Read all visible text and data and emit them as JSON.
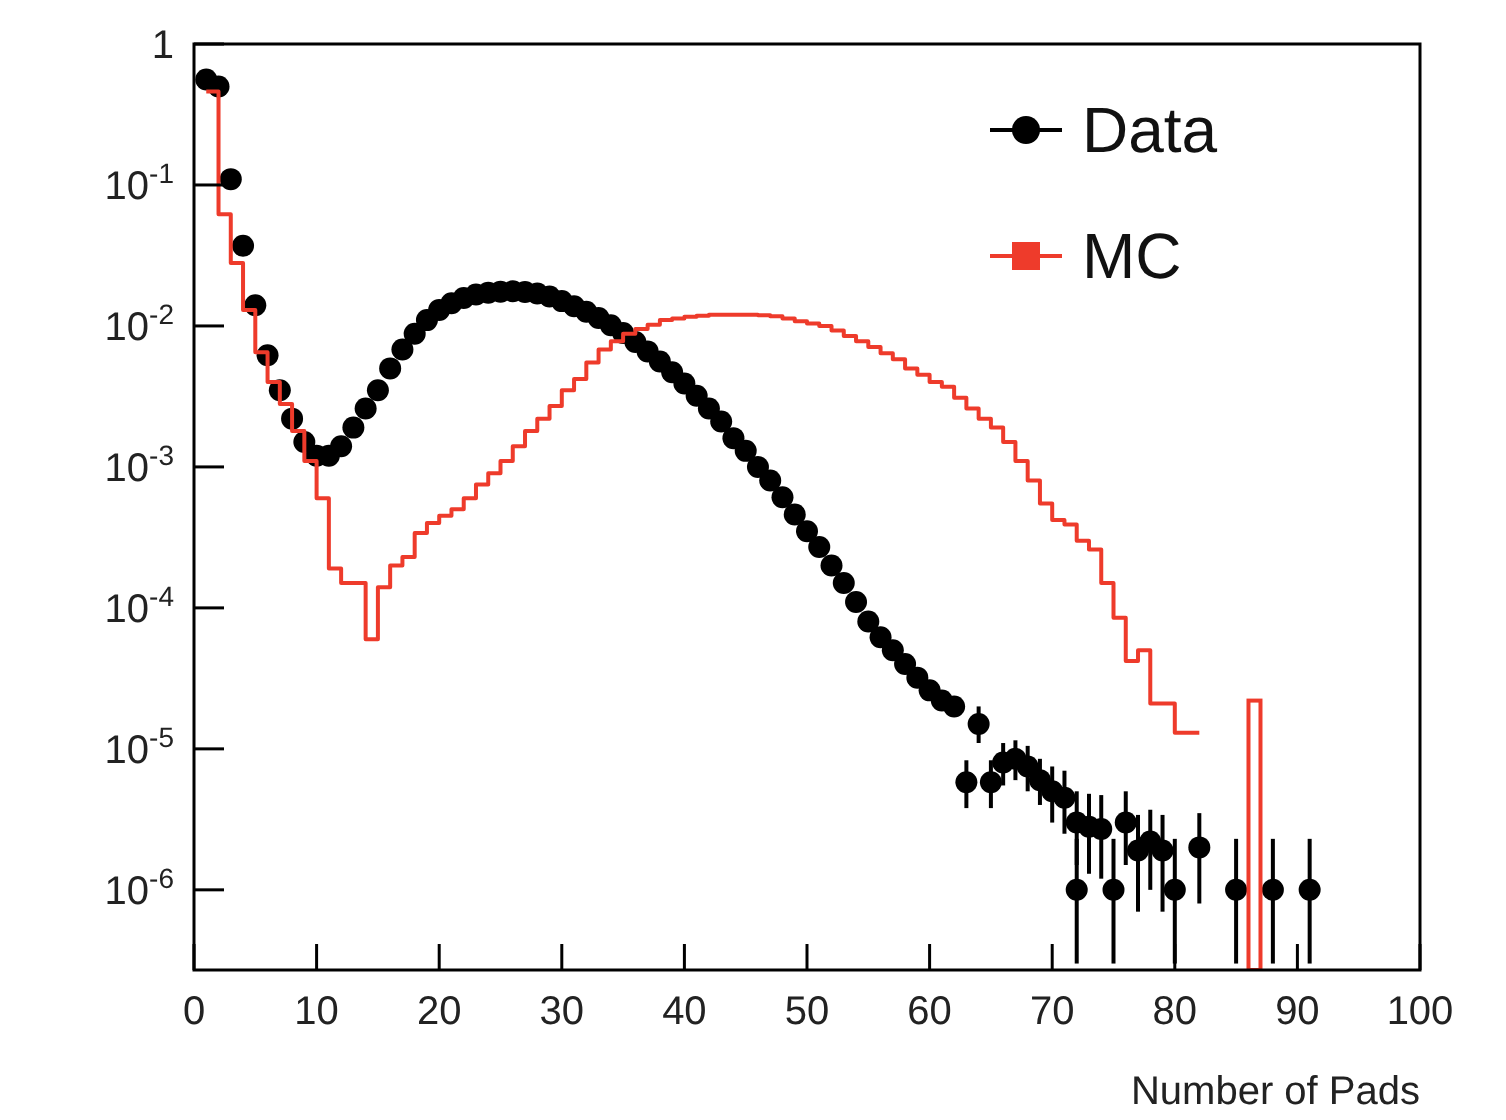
{
  "chart_data": {
    "type": "scatter",
    "xlabel": "Number of Pads",
    "log": "y",
    "legend": "top right",
    "grid": false,
    "xlim": [
      0,
      100
    ],
    "xticks": [
      0,
      10,
      20,
      30,
      40,
      50,
      60,
      70,
      80,
      90,
      100
    ],
    "ylim": [
      2.7e-07,
      1
    ],
    "yticks": [
      {
        "value": 1e-06,
        "label": "10$^{-6}$"
      },
      {
        "value": 1e-05,
        "label": "10$^{-5}$"
      },
      {
        "value": 0.0001,
        "label": "10$^{-4}$"
      },
      {
        "value": 0.001,
        "label": "10$^{-3}$"
      },
      {
        "value": 0.01,
        "label": "10$^{-2}$"
      },
      {
        "value": 0.1,
        "label": "10$^{-1}$"
      },
      1
    ],
    "series": [
      {
        "name": "Data",
        "marker": "circle",
        "color": "#000000",
        "x": [
          1,
          2,
          3,
          4,
          5,
          6,
          7,
          8,
          9,
          10,
          11,
          12,
          13,
          14,
          15,
          16,
          17,
          18,
          19,
          20,
          21,
          22,
          23,
          24,
          25,
          26,
          27,
          28,
          29,
          30,
          31,
          32,
          33,
          34,
          35,
          36,
          37,
          38,
          39,
          40,
          41,
          42,
          43,
          44,
          45,
          46,
          47,
          48,
          49,
          50,
          51,
          52,
          53,
          54,
          55,
          56,
          57,
          58,
          59,
          60,
          61,
          62,
          63,
          64,
          65,
          66,
          67,
          68,
          69,
          70,
          71,
          72,
          72,
          73,
          74,
          75,
          76,
          77,
          78,
          79,
          80,
          82,
          85,
          88,
          91
        ],
        "values": [
          0.56,
          0.5,
          0.11,
          0.037,
          0.014,
          0.0062,
          0.0035,
          0.0022,
          0.0015,
          0.0012,
          0.0012,
          0.0014,
          0.0019,
          0.0026,
          0.0035,
          0.005,
          0.0068,
          0.0088,
          0.011,
          0.013,
          0.0145,
          0.0158,
          0.0167,
          0.0172,
          0.0175,
          0.0176,
          0.0174,
          0.017,
          0.0162,
          0.015,
          0.0138,
          0.0126,
          0.0114,
          0.0101,
          0.0089,
          0.0077,
          0.0066,
          0.0056,
          0.0047,
          0.0039,
          0.0032,
          0.0026,
          0.0021,
          0.0016,
          0.0013,
          0.001,
          0.0008,
          0.00061,
          0.00046,
          0.00035,
          0.00027,
          0.0002,
          0.00015,
          0.00011,
          8e-05,
          6.2e-05,
          5e-05,
          4e-05,
          3.2e-05,
          2.6e-05,
          2.2e-05,
          2e-05,
          5.8e-06,
          1.5e-05,
          5.8e-06,
          8e-06,
          8.5e-06,
          7.5e-06,
          6e-06,
          5e-06,
          4.5e-06,
          1e-06,
          3e-06,
          2.8e-06,
          2.7e-06,
          1e-06,
          3e-06,
          1.9e-06,
          2.2e-06,
          1.9e-06,
          1e-06,
          2e-06,
          1e-06,
          1e-06,
          1e-06
        ],
        "errors": [
          null,
          null,
          null,
          null,
          null,
          null,
          null,
          null,
          null,
          null,
          null,
          null,
          null,
          null,
          null,
          null,
          null,
          null,
          null,
          null,
          null,
          null,
          null,
          null,
          null,
          null,
          null,
          null,
          null,
          null,
          null,
          null,
          null,
          null,
          null,
          null,
          null,
          null,
          null,
          null,
          null,
          null,
          null,
          null,
          null,
          null,
          null,
          null,
          null,
          null,
          null,
          null,
          null,
          null,
          null,
          null,
          null,
          null,
          null,
          null,
          null,
          null,
          [
            3.8e-06,
            8.3e-06
          ],
          [
            1.1e-05,
            2e-05
          ],
          [
            3.8e-06,
            8.3e-06
          ],
          [
            5.5e-06,
            1.1e-05
          ],
          [
            6e-06,
            1.15e-05
          ],
          [
            5e-06,
            1.05e-05
          ],
          [
            4e-06,
            8.5e-06
          ],
          [
            3e-06,
            7.5e-06
          ],
          [
            2.5e-06,
            7e-06
          ],
          [
            3e-07,
            2.3e-06
          ],
          [
            1.5e-06,
            5e-06
          ],
          [
            1.3e-06,
            4.8e-06
          ],
          [
            1.2e-06,
            4.7e-06
          ],
          [
            3e-07,
            2.3e-06
          ],
          [
            1.5e-06,
            5e-06
          ],
          [
            7e-07,
            3.4e-06
          ],
          [
            1e-06,
            3.7e-06
          ],
          [
            7e-07,
            3.4e-06
          ],
          [
            3e-07,
            2.3e-06
          ],
          [
            8e-07,
            3.5e-06
          ],
          [
            3e-07,
            2.3e-06
          ],
          [
            3e-07,
            2.3e-06
          ],
          [
            3e-07,
            2.3e-06
          ]
        ]
      },
      {
        "name": "MC",
        "type": "step",
        "color": "#ee3b2b",
        "x": [
          1.5,
          2.5,
          3.5,
          4.5,
          5.5,
          6.5,
          7.5,
          8.5,
          9.5,
          10.5,
          11.5,
          12.5,
          13.5,
          14.5,
          15.5,
          16.5,
          17.5,
          18.5,
          19.5,
          20.5,
          21.5,
          22.5,
          23.5,
          24.5,
          25.5,
          26.5,
          27.5,
          28.5,
          29.5,
          30.5,
          31.5,
          32.5,
          33.5,
          34.5,
          35.5,
          36.5,
          37.5,
          38.5,
          39.5,
          40.5,
          41.5,
          42.5,
          43.5,
          44.5,
          45.5,
          46.5,
          47.5,
          48.5,
          49.5,
          50.5,
          51.5,
          52.5,
          53.5,
          54.5,
          55.5,
          56.5,
          57.5,
          58.5,
          59.5,
          60.5,
          61.5,
          62.5,
          63.5,
          64.5,
          65.5,
          66.5,
          67.5,
          68.5,
          69.5,
          70.5,
          71.5,
          72.5,
          73.5,
          74.5,
          75.5,
          76.5,
          77.5,
          78.5,
          79.5,
          80.5,
          81.5
        ],
        "values": [
          0.46,
          0.062,
          0.028,
          0.013,
          0.0065,
          0.004,
          0.0028,
          0.0018,
          0.0011,
          0.0006,
          0.00019,
          0.00015,
          0.00015,
          6e-05,
          0.00014,
          0.0002,
          0.00023,
          0.00034,
          0.0004,
          0.00045,
          0.0005,
          0.0006,
          0.00075,
          0.0009,
          0.0011,
          0.0014,
          0.0018,
          0.0022,
          0.0027,
          0.0035,
          0.0042,
          0.0055,
          0.0068,
          0.0078,
          0.0088,
          0.0095,
          0.0102,
          0.011,
          0.0113,
          0.0116,
          0.0118,
          0.012,
          0.012,
          0.012,
          0.012,
          0.0119,
          0.0117,
          0.0113,
          0.0108,
          0.0104,
          0.01,
          0.0093,
          0.0085,
          0.0078,
          0.0071,
          0.0064,
          0.0058,
          0.005,
          0.0045,
          0.004,
          0.0037,
          0.0031,
          0.0026,
          0.0022,
          0.0019,
          0.0015,
          0.0011,
          0.0008,
          0.00055,
          0.00042,
          0.00039,
          0.0003,
          0.00026,
          0.00015,
          8.5e-05,
          4.2e-05,
          5e-05,
          2.1e-05,
          2.1e-05,
          1.3e-05,
          1.3e-05
        ]
      },
      {
        "type": "bar",
        "color": "#ee3b2b",
        "x": [
          86.5
        ],
        "values": [
          2.2e-05
        ]
      }
    ]
  }
}
